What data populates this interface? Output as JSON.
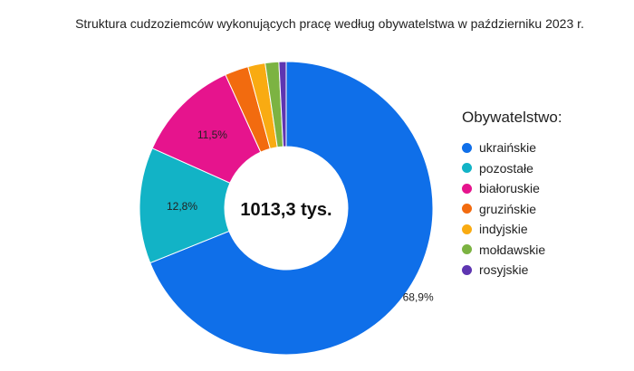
{
  "chart_data": {
    "type": "pie",
    "variant": "donut",
    "title": "Struktura cudzoziemców wykonujących pracę według obywatelstwa w październiku 2023 r.",
    "center_label": "1013,3 tys.",
    "legend_title": "Obywatelstwo:",
    "legend_position": "right",
    "slices": [
      {
        "name": "ukraińskie",
        "value": 68.9,
        "label": "68,9%",
        "color": "#0f6fe9"
      },
      {
        "name": "pozostałe",
        "value": 12.8,
        "label": "12,8%",
        "color": "#12b3c6"
      },
      {
        "name": "białoruskie",
        "value": 11.5,
        "label": "11,5%",
        "color": "#e6148d"
      },
      {
        "name": "gruzińskie",
        "value": 2.6,
        "label": "",
        "color": "#f26b0f"
      },
      {
        "name": "indyjskie",
        "value": 1.9,
        "label": "",
        "color": "#f9ab12"
      },
      {
        "name": "mołdawskie",
        "value": 1.5,
        "label": "",
        "color": "#7cb342"
      },
      {
        "name": "rosyjskie",
        "value": 0.8,
        "label": "",
        "color": "#5e35b1"
      }
    ]
  }
}
